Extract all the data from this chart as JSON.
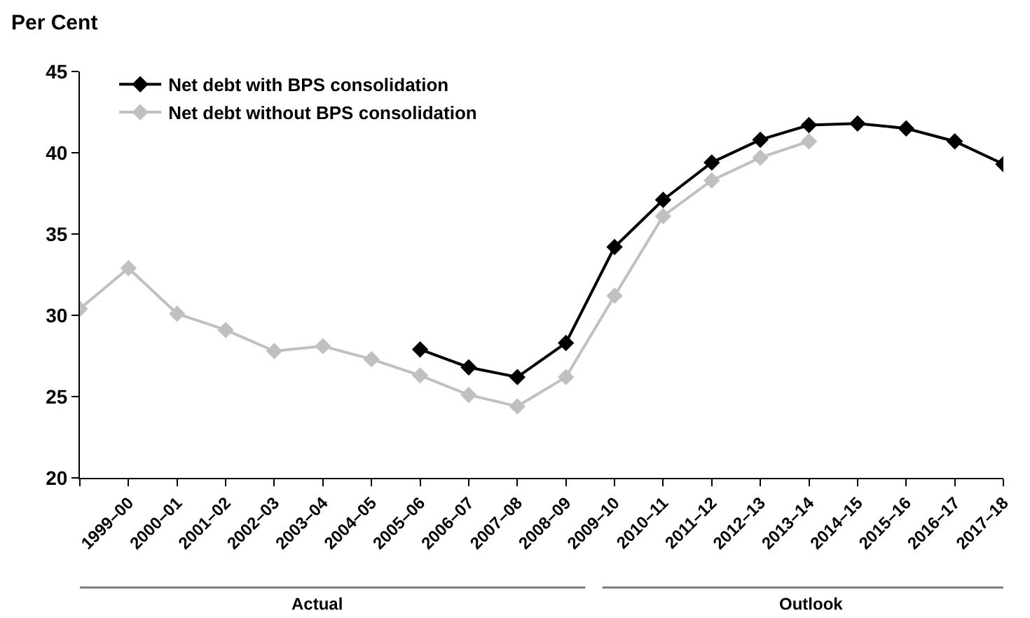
{
  "chart_data": {
    "type": "line",
    "ylabel": "Per Cent",
    "categories": [
      null,
      "1999–00",
      "2000–01",
      "2001–02",
      "2002–03",
      "2003–04",
      "2004–05",
      "2005–06",
      "2006–07",
      "2007–08",
      "2008–09",
      "2009–10",
      "2010–11",
      "2011–12",
      "2012–13",
      "2013–14",
      "2014–15",
      "2015–16",
      "2016–17",
      "2017–18"
    ],
    "series": [
      {
        "name": "Net debt with BPS consolidation",
        "color": "#000000",
        "values": [
          null,
          null,
          null,
          null,
          null,
          null,
          null,
          27.9,
          26.8,
          26.2,
          28.3,
          34.2,
          37.1,
          39.4,
          40.8,
          41.7,
          41.8,
          41.5,
          40.7,
          39.3
        ]
      },
      {
        "name": "Net debt without BPS consolidation",
        "color": "#c0c0c0",
        "values": [
          30.4,
          32.9,
          30.1,
          29.1,
          27.8,
          28.1,
          27.3,
          26.3,
          25.1,
          24.4,
          26.2,
          31.2,
          36.1,
          38.3,
          39.7,
          40.7,
          null,
          null,
          null,
          null
        ]
      }
    ],
    "ylim": [
      20,
      45
    ],
    "yticks": [
      20,
      25,
      30,
      35,
      40,
      45
    ],
    "annotations": [
      "Actual",
      "Outlook"
    ],
    "grid": false,
    "legend": "top",
    "marker": "diamond",
    "line_style": "solid"
  }
}
